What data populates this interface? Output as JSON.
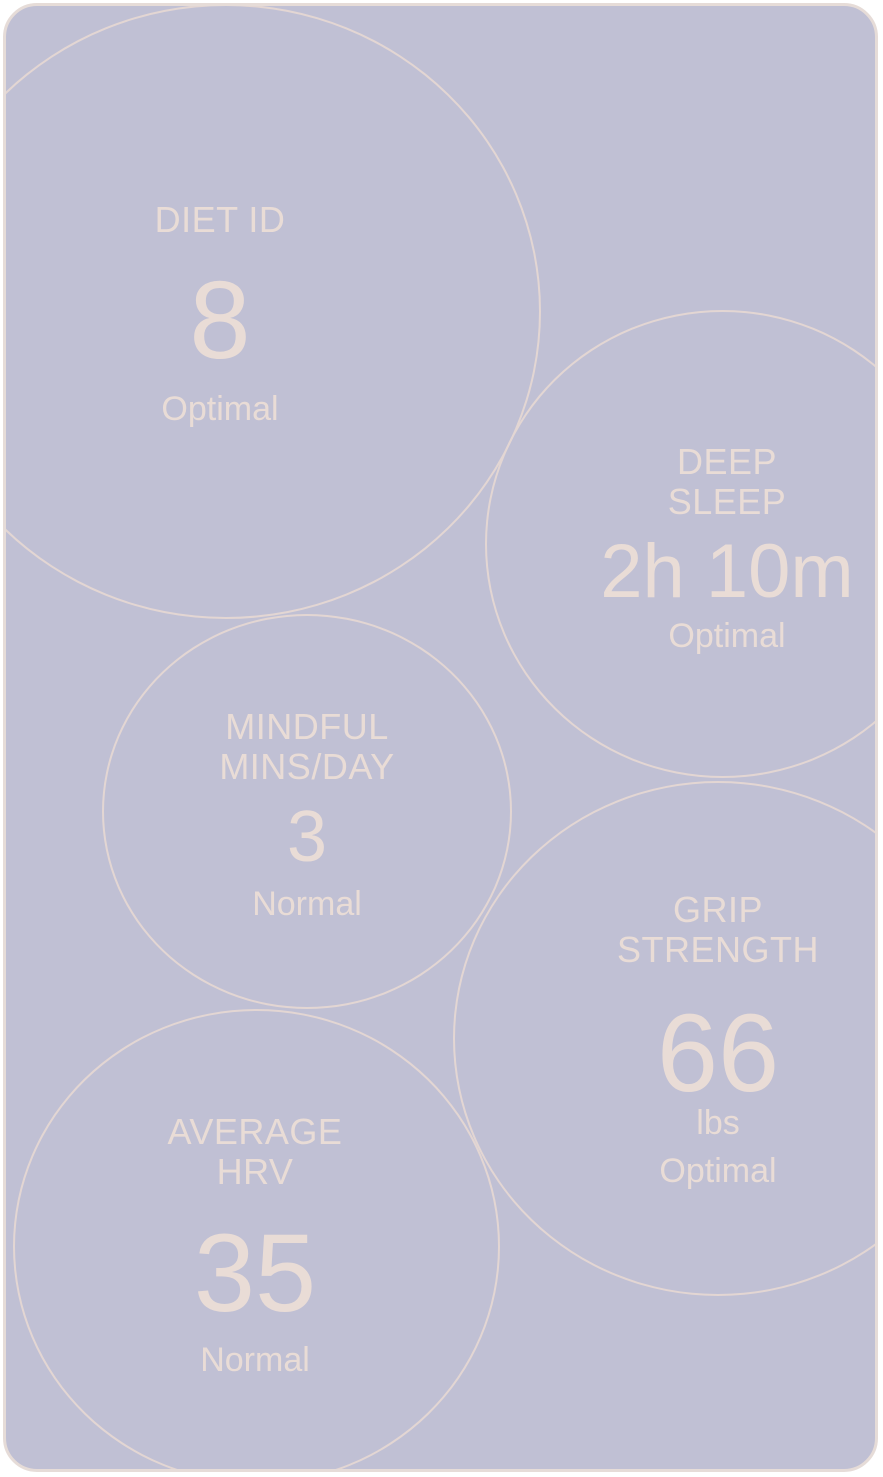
{
  "metrics": {
    "diet_id": {
      "label": "DIET ID",
      "value": "8",
      "status": "Optimal"
    },
    "deep_sleep": {
      "label": "DEEP\nSLEEP",
      "value": "2h 10m",
      "status": "Optimal"
    },
    "mindful": {
      "label": "MINDFUL\nMINS/DAY",
      "value": "3",
      "status": "Normal"
    },
    "grip": {
      "label": "GRIP\nSTRENGTH",
      "value": "66",
      "unit": "lbs",
      "status": "Optimal"
    },
    "hrv": {
      "label": "AVERAGE\nHRV",
      "value": "35",
      "status": "Normal"
    }
  },
  "colors": {
    "background": "#c0c0d4",
    "text": "#e9dcd6",
    "outline": "#e3d6d3"
  }
}
